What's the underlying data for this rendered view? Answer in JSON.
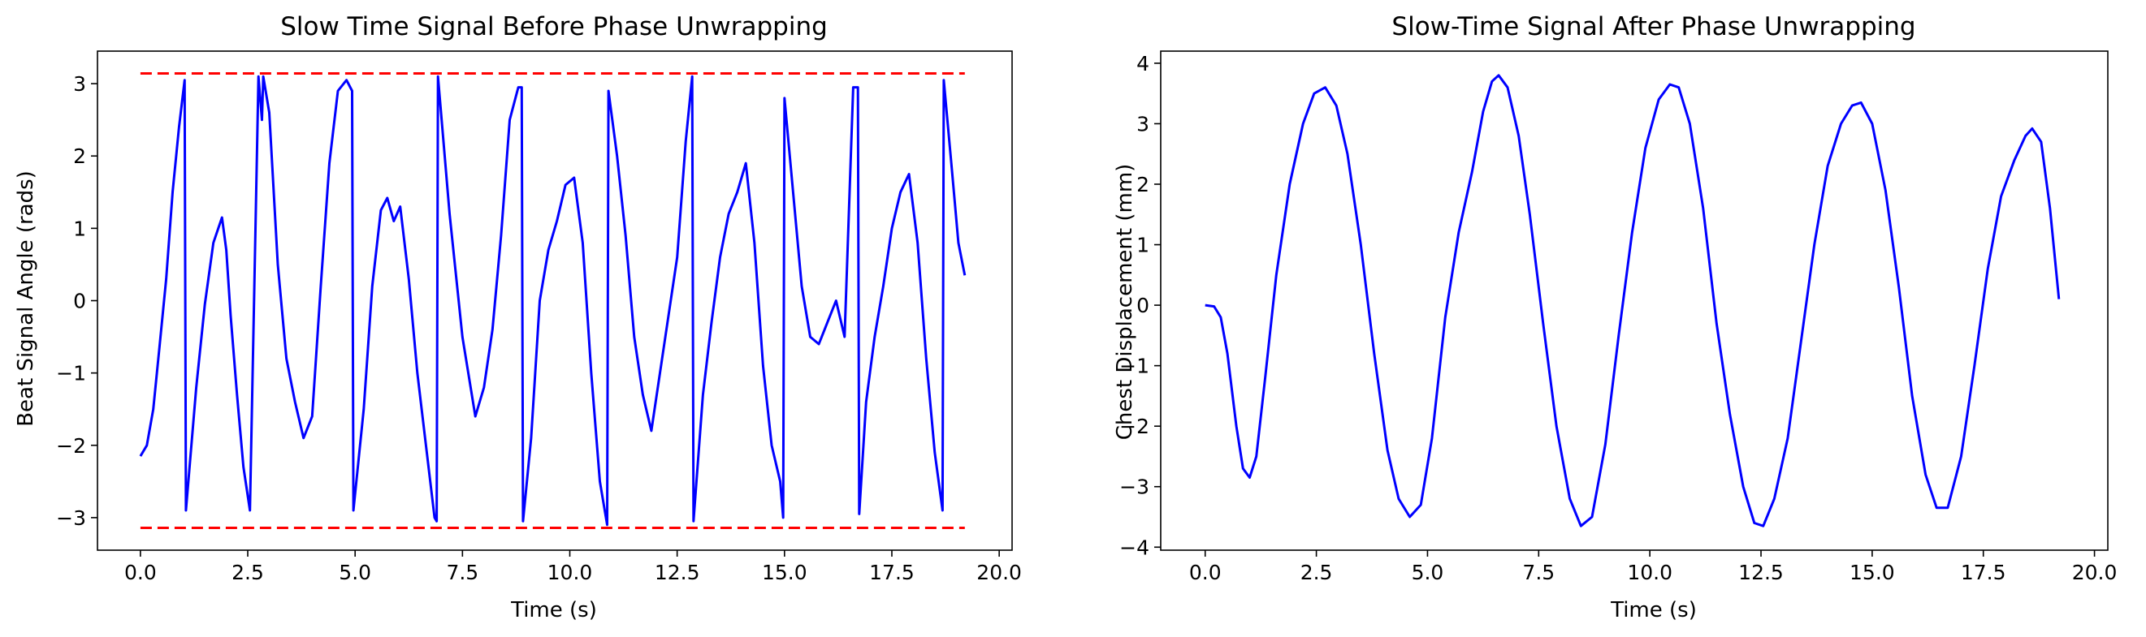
{
  "chart_data": [
    {
      "type": "line",
      "title": "Slow Time Signal Before Phase Unwrapping",
      "xlabel": "Time (s)",
      "ylabel": "Beat Signal Angle (rads)",
      "xlim": [
        -1.0,
        20.3
      ],
      "ylim": [
        -3.45,
        3.45
      ],
      "xticks": [
        0.0,
        2.5,
        5.0,
        7.5,
        10.0,
        12.5,
        15.0,
        17.5,
        20.0
      ],
      "xtick_labels": [
        "0.0",
        "2.5",
        "5.0",
        "7.5",
        "10.0",
        "12.5",
        "15.0",
        "17.5",
        "20.0"
      ],
      "yticks": [
        -3,
        -2,
        -1,
        0,
        1,
        2,
        3
      ],
      "ytick_labels": [
        "−3",
        "−2",
        "−1",
        "0",
        "1",
        "2",
        "3"
      ],
      "grid": false,
      "series": [
        {
          "color": "#0000ff",
          "style": "solid",
          "x": [
            0.0,
            0.15,
            0.3,
            0.45,
            0.6,
            0.75,
            0.9,
            1.03,
            1.06,
            1.3,
            1.5,
            1.7,
            1.9,
            2.0,
            2.1,
            2.25,
            2.4,
            2.55,
            2.75,
            2.83,
            2.86,
            3.0,
            3.2,
            3.4,
            3.6,
            3.8,
            4.0,
            4.2,
            4.4,
            4.6,
            4.8,
            4.93,
            4.96,
            5.2,
            5.4,
            5.6,
            5.75,
            5.9,
            6.05,
            6.25,
            6.45,
            6.65,
            6.85,
            6.9,
            6.93,
            7.2,
            7.5,
            7.8,
            8.0,
            8.2,
            8.4,
            8.6,
            8.8,
            8.88,
            8.91,
            9.1,
            9.3,
            9.5,
            9.7,
            9.9,
            10.1,
            10.3,
            10.5,
            10.7,
            10.87,
            10.9,
            11.1,
            11.3,
            11.5,
            11.7,
            11.9,
            12.1,
            12.3,
            12.5,
            12.7,
            12.85,
            12.88,
            13.1,
            13.3,
            13.5,
            13.7,
            13.9,
            14.1,
            14.3,
            14.5,
            14.7,
            14.9,
            14.97,
            15.0,
            15.2,
            15.4,
            15.6,
            15.8,
            16.0,
            16.2,
            16.4,
            16.6,
            16.71,
            16.74,
            16.9,
            17.1,
            17.3,
            17.5,
            17.7,
            17.9,
            18.1,
            18.3,
            18.5,
            18.68,
            18.71,
            18.9,
            19.05,
            19.2
          ],
          "y": [
            -2.15,
            -2.0,
            -1.5,
            -0.6,
            0.3,
            1.5,
            2.4,
            3.05,
            -2.9,
            -1.2,
            -0.05,
            0.8,
            1.15,
            0.7,
            -0.2,
            -1.3,
            -2.3,
            -2.9,
            3.1,
            2.5,
            3.1,
            2.6,
            0.5,
            -0.8,
            -1.4,
            -1.9,
            -1.6,
            0.2,
            1.9,
            2.9,
            3.05,
            2.9,
            -2.9,
            -1.5,
            0.2,
            1.25,
            1.42,
            1.1,
            1.3,
            0.3,
            -1.0,
            -2.0,
            -3.0,
            -3.05,
            3.1,
            1.2,
            -0.5,
            -1.6,
            -1.2,
            -0.4,
            0.9,
            2.5,
            2.95,
            2.95,
            -3.05,
            -1.9,
            0.0,
            0.7,
            1.1,
            1.6,
            1.7,
            0.8,
            -1.0,
            -2.5,
            -3.1,
            2.9,
            2.0,
            0.9,
            -0.5,
            -1.3,
            -1.8,
            -1.0,
            -0.2,
            0.6,
            2.2,
            3.1,
            -3.05,
            -1.3,
            -0.3,
            0.6,
            1.2,
            1.5,
            1.9,
            0.8,
            -0.9,
            -2.0,
            -2.5,
            -3.0,
            2.8,
            1.5,
            0.2,
            -0.5,
            -0.6,
            -0.3,
            0.0,
            -0.5,
            2.95,
            2.95,
            -2.95,
            -1.4,
            -0.5,
            0.2,
            1.0,
            1.5,
            1.75,
            0.8,
            -0.8,
            -2.1,
            -2.9,
            3.05,
            1.8,
            0.8,
            0.35
          ]
        },
        {
          "color": "#ff0000",
          "style": "dashed",
          "x": [
            0.0,
            19.2
          ],
          "y": [
            3.1416,
            3.1416
          ]
        },
        {
          "color": "#ff0000",
          "style": "dashed",
          "x": [
            0.0,
            19.2
          ],
          "y": [
            -3.1416,
            -3.1416
          ]
        }
      ]
    },
    {
      "type": "line",
      "title": "Slow-Time Signal After Phase Unwrapping",
      "xlabel": "Time (s)",
      "ylabel": "Chest Displacement (mm)",
      "xlim": [
        -1.0,
        20.3
      ],
      "ylim": [
        -4.05,
        4.2
      ],
      "xticks": [
        0.0,
        2.5,
        5.0,
        7.5,
        10.0,
        12.5,
        15.0,
        17.5,
        20.0
      ],
      "xtick_labels": [
        "0.0",
        "2.5",
        "5.0",
        "7.5",
        "10.0",
        "12.5",
        "15.0",
        "17.5",
        "20.0"
      ],
      "yticks": [
        -4,
        -3,
        -2,
        -1,
        0,
        1,
        2,
        3,
        4
      ],
      "ytick_labels": [
        "−4",
        "−3",
        "−2",
        "−1",
        "0",
        "1",
        "2",
        "3",
        "4"
      ],
      "grid": false,
      "series": [
        {
          "color": "#0000ff",
          "style": "solid",
          "x": [
            0.0,
            0.2,
            0.35,
            0.5,
            0.7,
            0.85,
            1.0,
            1.15,
            1.35,
            1.6,
            1.9,
            2.2,
            2.45,
            2.7,
            2.95,
            3.2,
            3.5,
            3.8,
            4.1,
            4.35,
            4.6,
            4.85,
            5.1,
            5.4,
            5.7,
            6.0,
            6.25,
            6.45,
            6.6,
            6.8,
            7.05,
            7.3,
            7.6,
            7.9,
            8.2,
            8.45,
            8.7,
            9.0,
            9.3,
            9.6,
            9.9,
            10.2,
            10.45,
            10.65,
            10.9,
            11.2,
            11.5,
            11.8,
            12.1,
            12.35,
            12.55,
            12.8,
            13.1,
            13.4,
            13.7,
            14.0,
            14.3,
            14.55,
            14.75,
            15.0,
            15.3,
            15.6,
            15.9,
            16.2,
            16.45,
            16.7,
            17.0,
            17.3,
            17.6,
            17.9,
            18.2,
            18.45,
            18.6,
            18.8,
            19.0,
            19.2
          ],
          "y": [
            0.0,
            -0.02,
            -0.2,
            -0.8,
            -2.0,
            -2.7,
            -2.85,
            -2.5,
            -1.2,
            0.5,
            2.0,
            3.0,
            3.5,
            3.6,
            3.3,
            2.5,
            1.0,
            -0.8,
            -2.4,
            -3.2,
            -3.5,
            -3.3,
            -2.2,
            -0.2,
            1.2,
            2.2,
            3.2,
            3.7,
            3.8,
            3.6,
            2.8,
            1.5,
            -0.3,
            -2.0,
            -3.2,
            -3.65,
            -3.5,
            -2.3,
            -0.5,
            1.2,
            2.6,
            3.4,
            3.65,
            3.6,
            3.0,
            1.6,
            -0.3,
            -1.8,
            -3.0,
            -3.6,
            -3.65,
            -3.2,
            -2.2,
            -0.6,
            1.0,
            2.3,
            3.0,
            3.3,
            3.35,
            3.0,
            1.9,
            0.3,
            -1.5,
            -2.8,
            -3.35,
            -3.35,
            -2.5,
            -1.0,
            0.6,
            1.8,
            2.4,
            2.8,
            2.92,
            2.7,
            1.6,
            0.1
          ]
        }
      ]
    }
  ]
}
